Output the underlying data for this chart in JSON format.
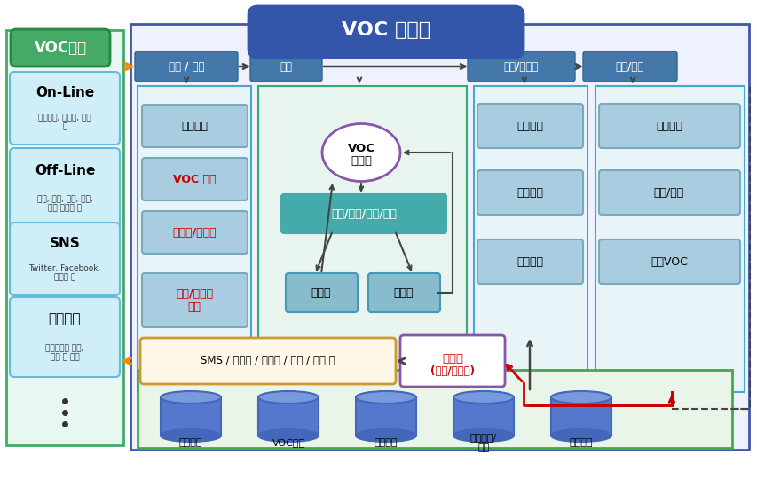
{
  "title": "VOC 시스템",
  "left_title": "VOC수집",
  "left_boxes": [
    {
      "label": "On-Line",
      "sub": "홈페이지, 이메일, 문자\n등"
    },
    {
      "label": "Off-Line",
      "sub": "전화, 방문, 우편, 교육,\n설문 이벤트 등"
    },
    {
      "label": "SNS",
      "sub": "Twitter, Facebook,\n블로그 등"
    },
    {
      "label": "내부고객",
      "sub": "서비스개선 요청,\n건의 및 개선"
    }
  ],
  "top_tabs": [
    "접수 / 분류",
    "배정",
    "처리/피드백",
    "분석/공유"
  ],
  "classify_items": [
    "고객유형",
    "VOC 유형",
    "사이트/중요도",
    "채널/서비스\n유형"
  ],
  "classify_text_colors": [
    "black",
    "#cc0000",
    "#cc0000",
    "#cc0000"
  ],
  "process_items": [
    "중간회신",
    "답변완료",
    "지연관리"
  ],
  "analysis_items": [
    "모니터링",
    "검색/통계",
    "반복VOC"
  ],
  "db_items": [
    "고객정보",
    "VOC정보",
    "프로모션",
    "지식관리/\n통계",
    "인트라넷"
  ],
  "colors": {
    "left_outer_bg": "#e8f8f0",
    "left_outer_border": "#44aa66",
    "left_title_bg": "#44aa66",
    "left_title_border": "#228844",
    "left_box_bg": "#d0eef8",
    "left_box_border": "#66bbdd",
    "main_outer_bg": "#eef2ff",
    "main_outer_border": "#4455aa",
    "title_pill_bg": "#3355aa",
    "tab_bg": "#4477aa",
    "tab_border": "#336688",
    "classify_panel_bg": "#e8f4f8",
    "classify_panel_border": "#44aacc",
    "classify_box_bg": "#aacce0",
    "classify_box_border": "#77aabb",
    "assign_panel_bg": "#e8f5ee",
    "assign_panel_border": "#33aa77",
    "process_panel_bg": "#e8f4f8",
    "process_panel_border": "#44aacc",
    "analysis_panel_bg": "#e8f4f8",
    "analysis_panel_border": "#44aacc",
    "process_box_bg": "#aacce0",
    "process_box_border": "#77aabb",
    "voc_circle_border": "#8855aa",
    "approve_bg": "#44aaaa",
    "handler_bg": "#88bbcc",
    "handler_border": "#4499bb",
    "sms_bg": "#fff8e8",
    "sms_border": "#cc9933",
    "feedback_bg": "#ffffff",
    "feedback_border": "#8855aa",
    "feedback_text": "#cc0000",
    "db_section_bg": "#e8f5e8",
    "db_section_border": "#44aa44",
    "db_cyl_top": "#7799dd",
    "db_cyl_body": "#5577cc",
    "db_cyl_bottom": "#4466bb",
    "db_text": "white",
    "arrow_gray": "#444444",
    "arrow_orange": "#ff8800",
    "arrow_red": "#cc0000"
  }
}
